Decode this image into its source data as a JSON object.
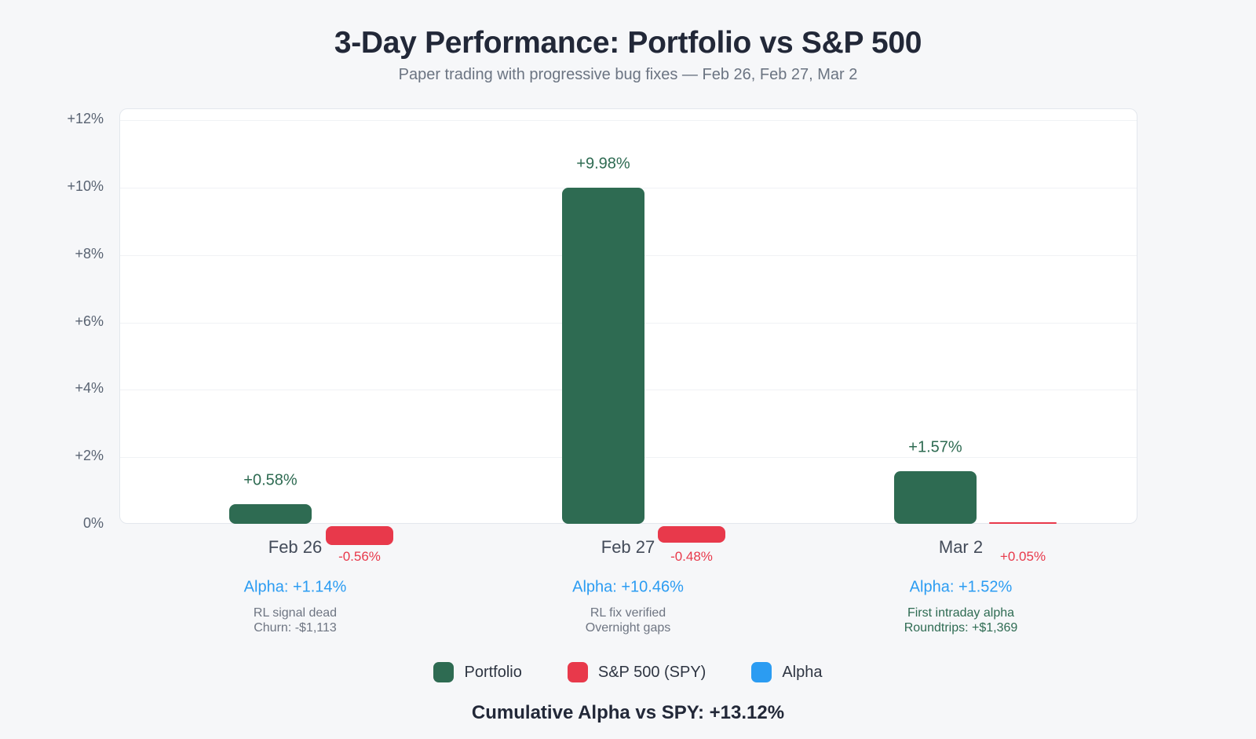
{
  "header": {
    "title": "3-Day Performance: Portfolio vs S&P 500",
    "subtitle": "Paper trading with progressive bug fixes — Feb 26, Feb 27, Mar 2"
  },
  "chart_data": {
    "type": "bar",
    "title": "3-Day Performance: Portfolio vs S&P 500",
    "subtitle": "Paper trading with progressive bug fixes — Feb 26, Feb 27, Mar 2",
    "categories": [
      "Feb 26",
      "Feb 27",
      "Mar 2"
    ],
    "series": [
      {
        "name": "Portfolio",
        "color": "#2e6b52",
        "values": [
          0.58,
          9.98,
          1.57
        ],
        "labels": [
          "+0.58%",
          "+9.98%",
          "+1.57%"
        ]
      },
      {
        "name": "S&P 500 (SPY)",
        "color": "#e8394b",
        "values": [
          -0.56,
          -0.48,
          0.05
        ],
        "labels": [
          "-0.56%",
          "-0.48%",
          "+0.05%"
        ]
      },
      {
        "name": "Alpha",
        "color": "#2b9cf2",
        "values": [
          1.14,
          10.46,
          1.52
        ],
        "labels": [
          "Alpha: +1.14%",
          "Alpha: +10.46%",
          "Alpha: +1.52%"
        ]
      }
    ],
    "annotations": [
      {
        "lines": [
          "RL signal dead",
          "Churn: -$1,113"
        ],
        "color": "#6e7582"
      },
      {
        "lines": [
          "RL fix verified",
          "Overnight gaps"
        ],
        "color": "#6e7582"
      },
      {
        "lines": [
          "First intraday alpha",
          "Roundtrips: +$1,369"
        ],
        "color": "#2e6b52"
      }
    ],
    "y_ticks": [
      "+12%",
      "+10%",
      "+8%",
      "+6%",
      "+4%",
      "+2%",
      "0%"
    ],
    "ylim": [
      0,
      12.33
    ],
    "xlabel": "",
    "ylabel": "",
    "grid": true,
    "legend_position": "bottom",
    "footer": "Cumulative Alpha vs SPY: +13.12%"
  }
}
